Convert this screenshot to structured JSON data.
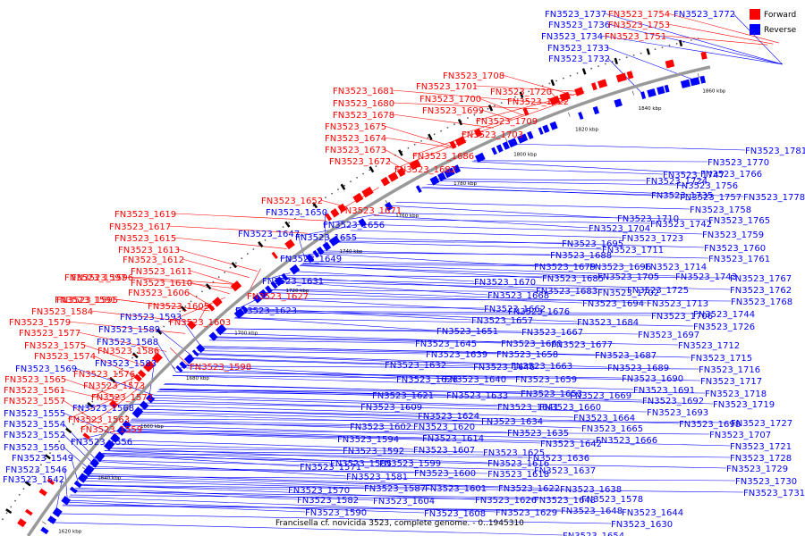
{
  "title": "Francisella cf. novicida 3523, complete genome. - 0..1945310",
  "legend": [
    {
      "label": "Forward",
      "color": "#ff0000"
    },
    {
      "label": "Reverse",
      "color": "#0000ff"
    }
  ],
  "colors": {
    "forward": "#ff0000",
    "reverse": "#0000ff",
    "backbone": "#999999"
  },
  "axis": {
    "tick_labels": [
      "1620 kbp",
      "1640 kbp",
      "1660 kbp",
      "1680 kbp",
      "1700 kbp",
      "1720 kbp",
      "1740 kbp",
      "1760 kbp",
      "1780 kbp",
      "1800 kbp",
      "1820 kbp",
      "1840 kbp",
      "1860 kbp"
    ]
  },
  "labels": [
    {
      "text": "FN3523_1737",
      "strand": "reverse"
    },
    {
      "text": "FN3523_1754",
      "strand": "forward"
    },
    {
      "text": "FN3523_1772",
      "strand": "reverse"
    },
    {
      "text": "FN3523_1736",
      "strand": "reverse"
    },
    {
      "text": "FN3523_1753",
      "strand": "forward"
    },
    {
      "text": "FN3523_1734",
      "strand": "reverse"
    },
    {
      "text": "FN3523_1751",
      "strand": "forward"
    },
    {
      "text": "FN3523_1733",
      "strand": "reverse"
    },
    {
      "text": "FN3523_1732",
      "strand": "reverse"
    },
    {
      "text": "FN3523_1708",
      "strand": "forward"
    },
    {
      "text": "FN3523_1701",
      "strand": "forward"
    },
    {
      "text": "FN3523_1720",
      "strand": "forward"
    },
    {
      "text": "FN3523_1681",
      "strand": "forward"
    },
    {
      "text": "FN3523_1700",
      "strand": "forward"
    },
    {
      "text": "FN3523_1722",
      "strand": "forward"
    },
    {
      "text": "FN3523_1680",
      "strand": "forward"
    },
    {
      "text": "FN3523_1699",
      "strand": "forward"
    },
    {
      "text": "FN3523_1678",
      "strand": "forward"
    },
    {
      "text": "FN3523_1709",
      "strand": "forward"
    },
    {
      "text": "FN3523_1675",
      "strand": "forward"
    },
    {
      "text": "FN3523_1703",
      "strand": "forward"
    },
    {
      "text": "FN3523_1674",
      "strand": "forward"
    },
    {
      "text": "FN3523_1781",
      "strand": "reverse"
    },
    {
      "text": "FN3523_1673",
      "strand": "forward"
    },
    {
      "text": "FN3523_1686",
      "strand": "forward"
    },
    {
      "text": "FN3523_1770",
      "strand": "reverse"
    },
    {
      "text": "FN3523_1672",
      "strand": "forward"
    },
    {
      "text": "FN3523_1747",
      "strand": "reverse"
    },
    {
      "text": "FN3523_1682",
      "strand": "forward"
    },
    {
      "text": "FN3523_1766",
      "strand": "reverse"
    },
    {
      "text": "FN3523_1724",
      "strand": "reverse"
    },
    {
      "text": "FN3523_1756",
      "strand": "reverse"
    },
    {
      "text": "FN3523_1735",
      "strand": "reverse"
    },
    {
      "text": "FN3523_1757",
      "strand": "reverse"
    },
    {
      "text": "FN3523_1778",
      "strand": "reverse"
    },
    {
      "text": "FN3523_1652",
      "strand": "forward"
    },
    {
      "text": "FN3523_1671",
      "strand": "forward"
    },
    {
      "text": "FN3523_1758",
      "strand": "reverse"
    },
    {
      "text": "FN3523_1650",
      "strand": "reverse"
    },
    {
      "text": "FN3523_1710",
      "strand": "reverse"
    },
    {
      "text": "FN3523_1619",
      "strand": "forward"
    },
    {
      "text": "FN3523_1742",
      "strand": "reverse"
    },
    {
      "text": "FN3523_1765",
      "strand": "reverse"
    },
    {
      "text": "FN3523_1656",
      "strand": "reverse"
    },
    {
      "text": "FN3523_1704",
      "strand": "reverse"
    },
    {
      "text": "FN3523_1617",
      "strand": "forward"
    },
    {
      "text": "FN3523_1647",
      "strand": "reverse"
    },
    {
      "text": "FN3523_1723",
      "strand": "reverse"
    },
    {
      "text": "FN3523_1759",
      "strand": "reverse"
    },
    {
      "text": "FN3523_1655",
      "strand": "reverse"
    },
    {
      "text": "FN3523_1695",
      "strand": "reverse"
    },
    {
      "text": "FN3523_1615",
      "strand": "forward"
    },
    {
      "text": "FN3523_1711",
      "strand": "reverse"
    },
    {
      "text": "FN3523_1760",
      "strand": "reverse"
    },
    {
      "text": "FN3523_1613",
      "strand": "forward"
    },
    {
      "text": "FN3523_1688",
      "strand": "reverse"
    },
    {
      "text": "FN3523_1649",
      "strand": "reverse"
    },
    {
      "text": "FN3523_1761",
      "strand": "reverse"
    },
    {
      "text": "FN3523_1612",
      "strand": "forward"
    },
    {
      "text": "FN3523_1679",
      "strand": "reverse"
    },
    {
      "text": "FN3523_1696",
      "strand": "reverse"
    },
    {
      "text": "FN3523_1714",
      "strand": "reverse"
    },
    {
      "text": "FN3523_1611",
      "strand": "forward"
    },
    {
      "text": "FN3523_1705",
      "strand": "reverse"
    },
    {
      "text": "FN3523_1743",
      "strand": "reverse"
    },
    {
      "text": "FN3523_1767",
      "strand": "reverse"
    },
    {
      "text": "FN3523_1597",
      "strand": "forward"
    },
    {
      "text": "FN3523_1631",
      "strand": "reverse"
    },
    {
      "text": "FN3523_1670",
      "strand": "reverse"
    },
    {
      "text": "FN3523_1685",
      "strand": "reverse"
    },
    {
      "text": "FN3523_1596",
      "strand": "forward"
    },
    {
      "text": "FN3523_1610",
      "strand": "forward"
    },
    {
      "text": "FN3523_1725",
      "strand": "reverse"
    },
    {
      "text": "FN3523_1762",
      "strand": "reverse"
    },
    {
      "text": "FN3523_1683",
      "strand": "reverse"
    },
    {
      "text": "FN3523_1702",
      "strand": "reverse"
    },
    {
      "text": "FN3523_1595",
      "strand": "forward"
    },
    {
      "text": "FN3523_1606",
      "strand": "forward"
    },
    {
      "text": "FN3523_1627",
      "strand": "forward"
    },
    {
      "text": "FN3523_1668",
      "strand": "reverse"
    },
    {
      "text": "FN3523_1768",
      "strand": "reverse"
    },
    {
      "text": "FN3523_1591",
      "strand": "forward"
    },
    {
      "text": "FN3523_1605",
      "strand": "forward"
    },
    {
      "text": "FN3523_1694",
      "strand": "reverse"
    },
    {
      "text": "FN3523_1713",
      "strand": "reverse"
    },
    {
      "text": "FN3523_1662",
      "strand": "reverse"
    },
    {
      "text": "FN3523_1584",
      "strand": "forward"
    },
    {
      "text": "FN3523_1593",
      "strand": "reverse"
    },
    {
      "text": "FN3523_1623",
      "strand": "reverse"
    },
    {
      "text": "FN3523_1676",
      "strand": "reverse"
    },
    {
      "text": "FN3523_1744",
      "strand": "reverse"
    },
    {
      "text": "FN3523_1579",
      "strand": "forward"
    },
    {
      "text": "FN3523_1603",
      "strand": "forward"
    },
    {
      "text": "FN3523_1657",
      "strand": "reverse"
    },
    {
      "text": "FN3523_1684",
      "strand": "reverse"
    },
    {
      "text": "FN3523_1706",
      "strand": "reverse"
    },
    {
      "text": "FN3523_1589",
      "strand": "reverse"
    },
    {
      "text": "FN3523_1726",
      "strand": "reverse"
    },
    {
      "text": "FN3523_1577",
      "strand": "forward"
    },
    {
      "text": "FN3523_1651",
      "strand": "reverse"
    },
    {
      "text": "FN3523_1667",
      "strand": "reverse"
    },
    {
      "text": "FN3523_1697",
      "strand": "reverse"
    },
    {
      "text": "FN3523_1588",
      "strand": "reverse"
    },
    {
      "text": "FN3523_1677",
      "strand": "reverse"
    },
    {
      "text": "FN3523_1575",
      "strand": "forward"
    },
    {
      "text": "FN3523_1645",
      "strand": "reverse"
    },
    {
      "text": "FN3523_1661",
      "strand": "reverse"
    },
    {
      "text": "FN3523_1712",
      "strand": "reverse"
    },
    {
      "text": "FN3523_1586",
      "strand": "forward"
    },
    {
      "text": "FN3523_1574",
      "strand": "forward"
    },
    {
      "text": "FN3523_1639",
      "strand": "reverse"
    },
    {
      "text": "FN3523_1658",
      "strand": "reverse"
    },
    {
      "text": "FN3523_1687",
      "strand": "reverse"
    },
    {
      "text": "FN3523_1715",
      "strand": "reverse"
    },
    {
      "text": "FN3523_1583",
      "strand": "reverse"
    },
    {
      "text": "FN3523_1598",
      "strand": "forward"
    },
    {
      "text": "FN3523_1632",
      "strand": "reverse"
    },
    {
      "text": "FN3523_1646",
      "strand": "reverse"
    },
    {
      "text": "FN3523_1663",
      "strand": "reverse"
    },
    {
      "text": "FN3523_1689",
      "strand": "reverse"
    },
    {
      "text": "FN3523_1716",
      "strand": "reverse"
    },
    {
      "text": "FN3523_1569",
      "strand": "reverse"
    },
    {
      "text": "FN3523_1576",
      "strand": "forward"
    },
    {
      "text": "FN3523_1628",
      "strand": "reverse"
    },
    {
      "text": "FN3523_1640",
      "strand": "reverse"
    },
    {
      "text": "FN3523_1659",
      "strand": "reverse"
    },
    {
      "text": "FN3523_1690",
      "strand": "reverse"
    },
    {
      "text": "FN3523_1717",
      "strand": "reverse"
    },
    {
      "text": "FN3523_1565",
      "strand": "forward"
    },
    {
      "text": "FN3523_1573",
      "strand": "forward"
    },
    {
      "text": "FN3523_1621",
      "strand": "reverse"
    },
    {
      "text": "FN3523_1633",
      "strand": "reverse"
    },
    {
      "text": "FN3523_1653",
      "strand": "reverse"
    },
    {
      "text": "FN3523_1669",
      "strand": "reverse"
    },
    {
      "text": "FN3523_1691",
      "strand": "reverse"
    },
    {
      "text": "FN3523_1718",
      "strand": "reverse"
    },
    {
      "text": "FN3523_1561",
      "strand": "forward"
    },
    {
      "text": "FN3523_1572",
      "strand": "forward"
    },
    {
      "text": "FN3523_1692",
      "strand": "reverse"
    },
    {
      "text": "FN3523_1557",
      "strand": "forward"
    },
    {
      "text": "FN3523_1568",
      "strand": "reverse"
    },
    {
      "text": "FN3523_1609",
      "strand": "reverse"
    },
    {
      "text": "FN3523_1641",
      "strand": "reverse"
    },
    {
      "text": "FN3523_1660",
      "strand": "reverse"
    },
    {
      "text": "FN3523_1719",
      "strand": "reverse"
    },
    {
      "text": "FN3523_1555",
      "strand": "reverse"
    },
    {
      "text": "FN3523_1624",
      "strand": "reverse"
    },
    {
      "text": "FN3523_1693",
      "strand": "reverse"
    },
    {
      "text": "FN3523_1563",
      "strand": "forward"
    },
    {
      "text": "FN3523_1554",
      "strand": "reverse"
    },
    {
      "text": "FN3523_1602",
      "strand": "reverse"
    },
    {
      "text": "FN3523_1620",
      "strand": "reverse"
    },
    {
      "text": "FN3523_1634",
      "strand": "reverse"
    },
    {
      "text": "FN3523_1664",
      "strand": "reverse"
    },
    {
      "text": "FN3523_1698",
      "strand": "reverse"
    },
    {
      "text": "FN3523_1727",
      "strand": "reverse"
    },
    {
      "text": "FN3523_1559",
      "strand": "forward"
    },
    {
      "text": "FN3523_1552",
      "strand": "reverse"
    },
    {
      "text": "FN3523_1635",
      "strand": "reverse"
    },
    {
      "text": "FN3523_1665",
      "strand": "reverse"
    },
    {
      "text": "FN3523_1707",
      "strand": "reverse"
    },
    {
      "text": "FN3523_1594",
      "strand": "reverse"
    },
    {
      "text": "FN3523_1614",
      "strand": "reverse"
    },
    {
      "text": "FN3523_1556",
      "strand": "reverse"
    },
    {
      "text": "FN3523_1666",
      "strand": "reverse"
    },
    {
      "text": "FN3523_1550",
      "strand": "reverse"
    },
    {
      "text": "FN3523_1592",
      "strand": "reverse"
    },
    {
      "text": "FN3523_1607",
      "strand": "reverse"
    },
    {
      "text": "FN3523_1642",
      "strand": "reverse"
    },
    {
      "text": "FN3523_1721",
      "strand": "reverse"
    },
    {
      "text": "FN3523_1625",
      "strand": "reverse"
    },
    {
      "text": "FN3523_1549",
      "strand": "reverse"
    },
    {
      "text": "FN3523_1585",
      "strand": "reverse"
    },
    {
      "text": "FN3523_1599",
      "strand": "reverse"
    },
    {
      "text": "FN3523_1616",
      "strand": "reverse"
    },
    {
      "text": "FN3523_1636",
      "strand": "reverse"
    },
    {
      "text": "FN3523_1728",
      "strand": "reverse"
    },
    {
      "text": "FN3523_1546",
      "strand": "reverse"
    },
    {
      "text": "FN3523_1571",
      "strand": "reverse"
    },
    {
      "text": "FN3523_1581",
      "strand": "reverse"
    },
    {
      "text": "FN3523_1600",
      "strand": "reverse"
    },
    {
      "text": "FN3523_1618",
      "strand": "reverse"
    },
    {
      "text": "FN3523_1637",
      "strand": "reverse"
    },
    {
      "text": "FN3523_1729",
      "strand": "reverse"
    },
    {
      "text": "FN3523_1542",
      "strand": "reverse"
    },
    {
      "text": "FN3523_1730",
      "strand": "reverse"
    },
    {
      "text": "FN3523_1587",
      "strand": "reverse"
    },
    {
      "text": "FN3523_1601",
      "strand": "reverse"
    },
    {
      "text": "FN3523_1622",
      "strand": "reverse"
    },
    {
      "text": "FN3523_1638",
      "strand": "reverse"
    },
    {
      "text": "FN3523_1570",
      "strand": "reverse"
    },
    {
      "text": "FN3523_1731",
      "strand": "reverse"
    },
    {
      "text": "FN3523_1582",
      "strand": "reverse"
    },
    {
      "text": "FN3523_1604",
      "strand": "reverse"
    },
    {
      "text": "FN3523_1626",
      "strand": "reverse"
    },
    {
      "text": "FN3523_1643",
      "strand": "reverse"
    },
    {
      "text": "FN3523_1578",
      "strand": "reverse"
    },
    {
      "text": "FN3523_1590",
      "strand": "reverse"
    },
    {
      "text": "FN3523_1608",
      "strand": "reverse"
    },
    {
      "text": "FN3523_1629",
      "strand": "reverse"
    },
    {
      "text": "FN3523_1648",
      "strand": "reverse"
    },
    {
      "text": "FN3523_1644",
      "strand": "reverse"
    },
    {
      "text": "FN3523_1630",
      "strand": "reverse"
    },
    {
      "text": "FN3523_1654",
      "strand": "reverse"
    }
  ]
}
